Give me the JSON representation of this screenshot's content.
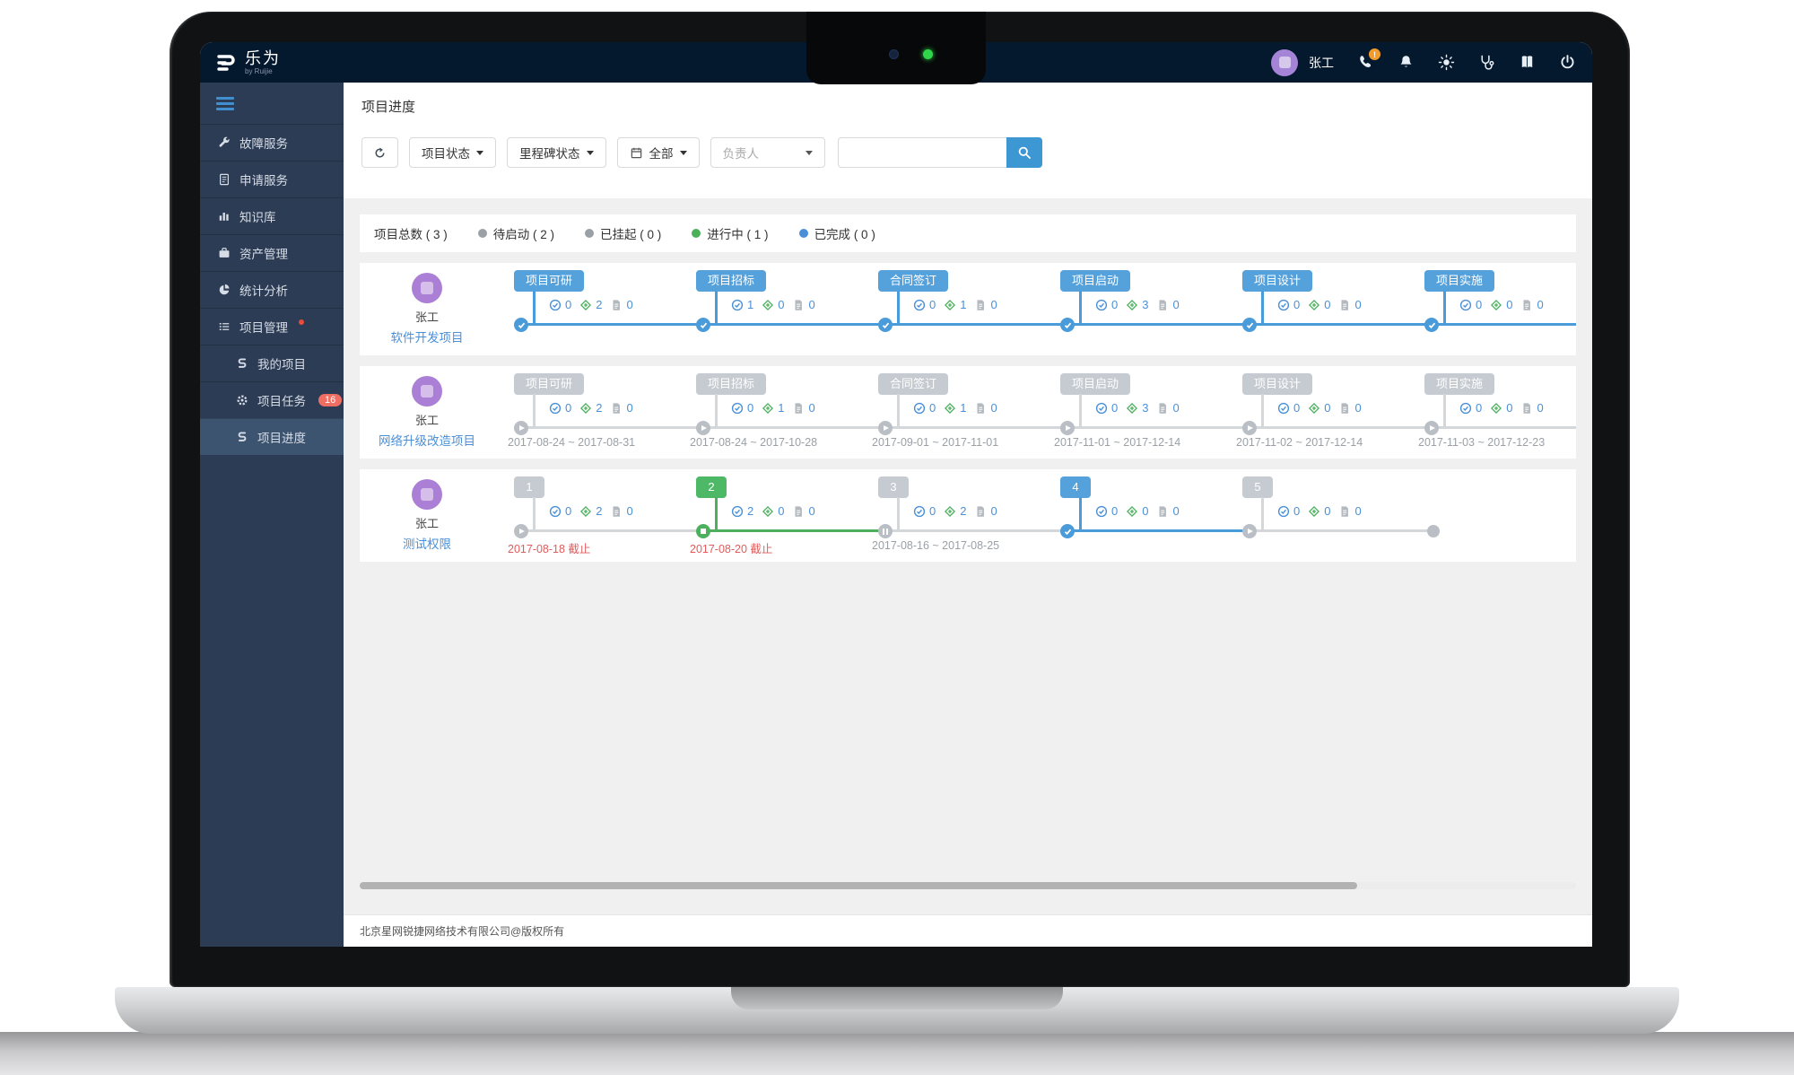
{
  "colors": {
    "blue": "#4a9bd9",
    "green": "#4db05f",
    "grayline": "#d3d7da",
    "nodegray": "#b9bfc5",
    "badgeblue": "#55a1dc",
    "badgegray": "#c6cbd1",
    "badgegreen": "#4db865",
    "red": "#e05c5c",
    "accent": "#3d97d3"
  },
  "navbar": {
    "logo": "乐为",
    "logo_sub": "by Ruijie",
    "user": "张工",
    "phone_badge": "!"
  },
  "sidebar": {
    "items": [
      {
        "icon": "wrench",
        "label": "故障服务"
      },
      {
        "icon": "request",
        "label": "申请服务"
      },
      {
        "icon": "knowledge",
        "label": "知识库"
      },
      {
        "icon": "asset",
        "label": "资产管理"
      },
      {
        "icon": "stats",
        "label": "统计分析"
      },
      {
        "icon": "project",
        "label": "项目管理",
        "dot": true
      }
    ],
    "subitems": [
      {
        "icon": "link",
        "label": "我的项目"
      },
      {
        "icon": "gear",
        "label": "项目任务",
        "badge": "16"
      },
      {
        "icon": "link",
        "label": "项目进度",
        "active": true
      }
    ]
  },
  "page": {
    "title": "项目进度"
  },
  "filters": {
    "project_status": "项目状态",
    "milestone_status": "里程碑状态",
    "scope": "全部",
    "owner_placeholder": "负责人",
    "search_value": ""
  },
  "summary": {
    "total_text": "项目总数 ( 3 )",
    "items": [
      {
        "text": "待启动 ( 2 )",
        "color": "#9aa0a6"
      },
      {
        "text": "已挂起 ( 0 )",
        "color": "#9aa0a6"
      },
      {
        "text": "进行中 ( 1 )",
        "color": "#4cb05a"
      },
      {
        "text": "已完成 ( 0 )",
        "color": "#4a90d9"
      }
    ]
  },
  "projects": [
    {
      "owner": "张工",
      "name": "软件开发项目",
      "extend": true,
      "end_dot": false,
      "milestones": [
        {
          "label": "项目可研",
          "badge": "badgeblue",
          "node": "check",
          "seg": "blue",
          "tasks": "0",
          "issues": "2",
          "docs": "0",
          "date": "",
          "date_style": ""
        },
        {
          "label": "项目招标",
          "badge": "badgeblue",
          "node": "check",
          "seg": "blue",
          "tasks": "1",
          "issues": "0",
          "docs": "0",
          "date": "",
          "date_style": ""
        },
        {
          "label": "合同签订",
          "badge": "badgeblue",
          "node": "check",
          "seg": "blue",
          "tasks": "0",
          "issues": "1",
          "docs": "0",
          "date": "",
          "date_style": ""
        },
        {
          "label": "项目启动",
          "badge": "badgeblue",
          "node": "check",
          "seg": "blue",
          "tasks": "0",
          "issues": "3",
          "docs": "0",
          "date": "",
          "date_style": ""
        },
        {
          "label": "项目设计",
          "badge": "badgeblue",
          "node": "check",
          "seg": "blue",
          "tasks": "0",
          "issues": "0",
          "docs": "0",
          "date": "",
          "date_style": ""
        },
        {
          "label": "项目实施",
          "badge": "badgeblue",
          "node": "check",
          "seg": "blue",
          "tasks": "0",
          "issues": "0",
          "docs": "0",
          "date": "",
          "date_style": ""
        }
      ]
    },
    {
      "owner": "张工",
      "name": "网络升级改造项目",
      "extend": true,
      "end_dot": false,
      "milestones": [
        {
          "label": "项目可研",
          "badge": "badgegray",
          "node": "play",
          "seg": "grayline",
          "tasks": "0",
          "issues": "2",
          "docs": "0",
          "date": "2017-08-24 ~ 2017-08-31",
          "date_style": "plain"
        },
        {
          "label": "项目招标",
          "badge": "badgegray",
          "node": "play",
          "seg": "grayline",
          "tasks": "0",
          "issues": "1",
          "docs": "0",
          "date": "2017-08-24 ~ 2017-10-28",
          "date_style": "plain"
        },
        {
          "label": "合同签订",
          "badge": "badgegray",
          "node": "play",
          "seg": "grayline",
          "tasks": "0",
          "issues": "1",
          "docs": "0",
          "date": "2017-09-01 ~ 2017-11-01",
          "date_style": "plain"
        },
        {
          "label": "项目启动",
          "badge": "badgegray",
          "node": "play",
          "seg": "grayline",
          "tasks": "0",
          "issues": "3",
          "docs": "0",
          "date": "2017-11-01 ~ 2017-12-14",
          "date_style": "plain"
        },
        {
          "label": "项目设计",
          "badge": "badgegray",
          "node": "play",
          "seg": "grayline",
          "tasks": "0",
          "issues": "0",
          "docs": "0",
          "date": "2017-11-02 ~ 2017-12-14",
          "date_style": "plain"
        },
        {
          "label": "项目实施",
          "badge": "badgegray",
          "node": "play",
          "seg": "grayline",
          "tasks": "0",
          "issues": "0",
          "docs": "0",
          "date": "2017-11-03 ~ 2017-12-23",
          "date_style": "plain"
        }
      ]
    },
    {
      "owner": "张工",
      "name": "测试权限",
      "extend": false,
      "end_dot": true,
      "milestones": [
        {
          "label": "1",
          "badge": "badgegray",
          "node": "play",
          "seg": "grayline",
          "tasks": "0",
          "issues": "2",
          "docs": "0",
          "date": "2017-08-18 截止",
          "date_style": "due"
        },
        {
          "label": "2",
          "badge": "badgegreen",
          "node": "current",
          "seg": "green",
          "tasks": "2",
          "issues": "0",
          "docs": "0",
          "date": "2017-08-20 截止",
          "date_style": "due"
        },
        {
          "label": "3",
          "badge": "badgegray",
          "node": "pause",
          "seg": "grayline",
          "tasks": "0",
          "issues": "2",
          "docs": "0",
          "date": "2017-08-16 ~ 2017-08-25",
          "date_style": "plain"
        },
        {
          "label": "4",
          "badge": "badgeblue",
          "node": "check",
          "seg": "blue",
          "tasks": "0",
          "issues": "0",
          "docs": "0",
          "date": "",
          "date_style": ""
        },
        {
          "label": "5",
          "badge": "badgegray",
          "node": "play",
          "seg": "grayline",
          "tasks": "0",
          "issues": "0",
          "docs": "0",
          "date": "",
          "date_style": ""
        }
      ]
    }
  ],
  "footer": {
    "copyright": "北京星网锐捷网络技术有限公司@版权所有"
  }
}
